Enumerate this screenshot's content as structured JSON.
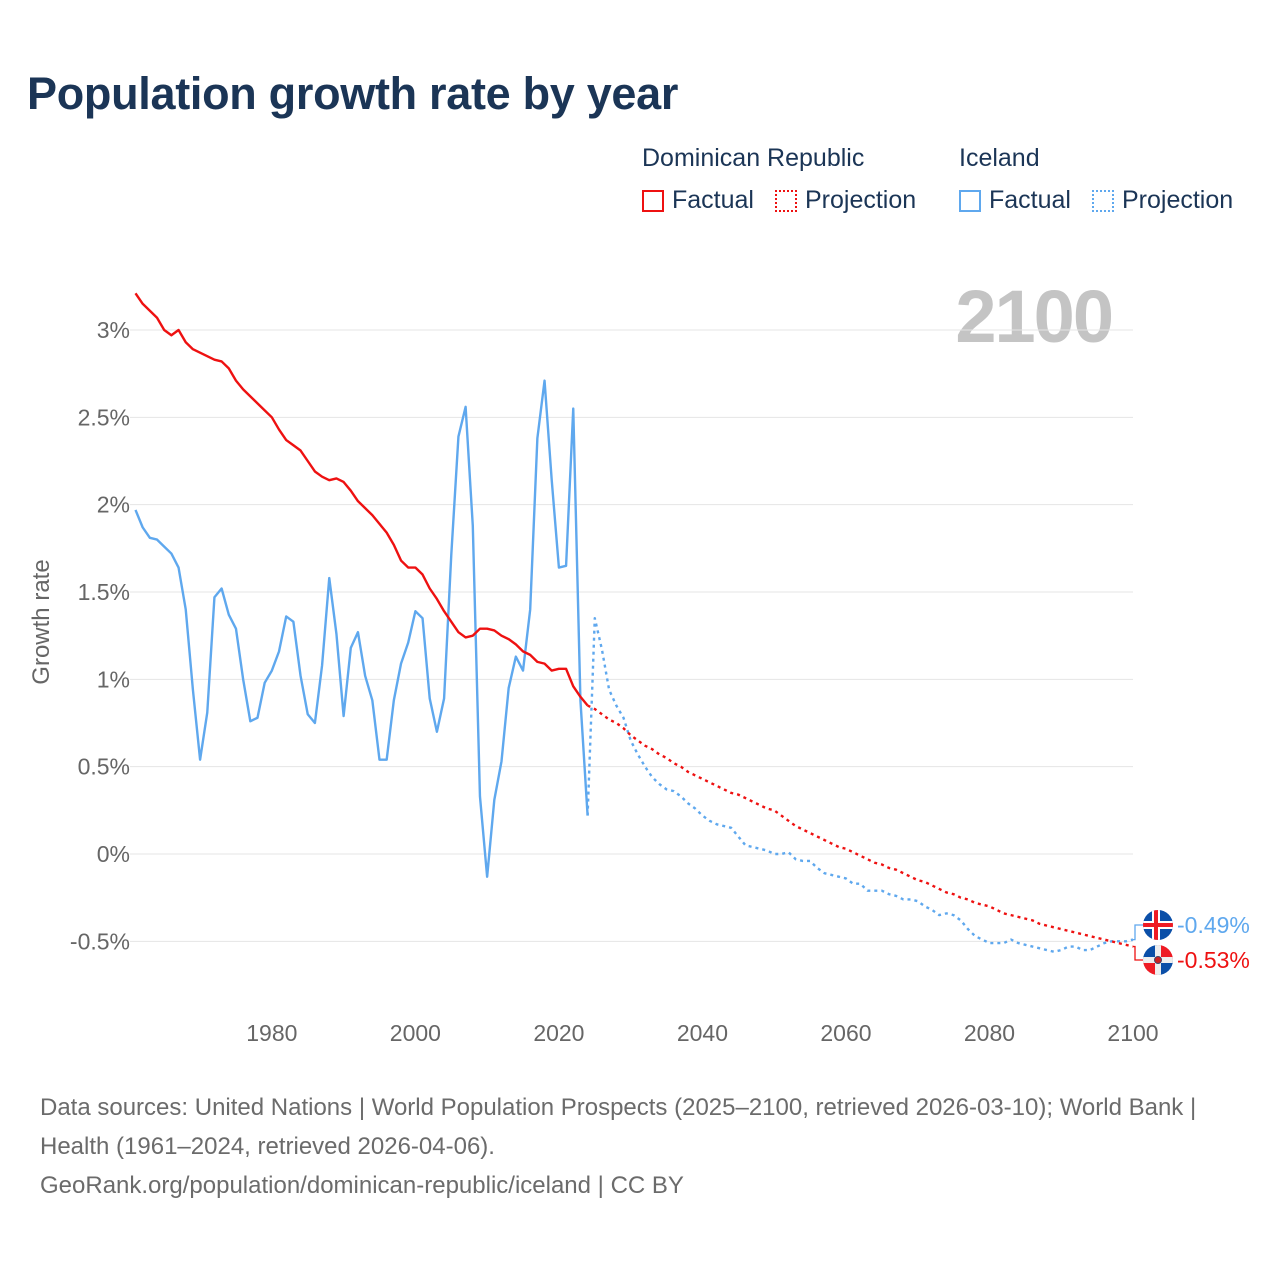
{
  "title": "Population growth rate by year",
  "legend": {
    "groups": [
      {
        "name": "Dominican Republic",
        "factual": "Factual",
        "projection": "Projection",
        "color": "#ee1111"
      },
      {
        "name": "Iceland",
        "factual": "Factual",
        "projection": "Projection",
        "color": "#5fa8ee"
      }
    ]
  },
  "year_display": "2100",
  "end_labels": {
    "iceland": "-0.49%",
    "dominican_republic": "-0.53%"
  },
  "source": {
    "line1": "Data sources: United Nations | World Population Prospects (2025–2100, retrieved 2026-03-10); World Bank | Health (1961–2024, retrieved 2026-04-06).",
    "line2": "GeoRank.org/population/dominican-republic/iceland | CC BY"
  },
  "chart_data": {
    "type": "line",
    "title": "Population growth rate by year",
    "xlabel": "",
    "ylabel": "Growth rate",
    "xlim": [
      1961,
      2100
    ],
    "ylim": [
      -0.75,
      3.3
    ],
    "x_ticks": [
      1980,
      2000,
      2020,
      2040,
      2060,
      2080,
      2100
    ],
    "y_ticks": [
      {
        "value": 3,
        "label": "3%"
      },
      {
        "value": 2.5,
        "label": "2.5%"
      },
      {
        "value": 2,
        "label": "2%"
      },
      {
        "value": 1.5,
        "label": "1.5%"
      },
      {
        "value": 1,
        "label": "1%"
      },
      {
        "value": 0.5,
        "label": "0.5%"
      },
      {
        "value": 0,
        "label": "0%"
      },
      {
        "value": -0.5,
        "label": "-0.5%"
      }
    ],
    "grid": true,
    "legend_position": "top-right",
    "series": [
      {
        "name": "Dominican Republic",
        "color": "#ee1111",
        "factual_start": 1961,
        "factual": [
          3.21,
          3.15,
          3.11,
          3.07,
          3.0,
          2.97,
          3.0,
          2.93,
          2.89,
          2.87,
          2.85,
          2.83,
          2.82,
          2.78,
          2.71,
          2.66,
          2.62,
          2.58,
          2.54,
          2.5,
          2.43,
          2.37,
          2.34,
          2.31,
          2.25,
          2.19,
          2.16,
          2.14,
          2.15,
          2.13,
          2.08,
          2.02,
          1.98,
          1.94,
          1.89,
          1.84,
          1.77,
          1.68,
          1.64,
          1.64,
          1.6,
          1.52,
          1.46,
          1.39,
          1.33,
          1.27,
          1.24,
          1.25,
          1.29,
          1.29,
          1.28,
          1.25,
          1.23,
          1.2,
          1.16,
          1.14,
          1.1,
          1.09,
          1.05,
          1.06,
          1.06,
          0.96,
          0.9,
          0.85
        ],
        "projection_start": 2025,
        "projection": [
          0.83,
          0.8,
          0.77,
          0.75,
          0.72,
          0.68,
          0.65,
          0.62,
          0.6,
          0.57,
          0.55,
          0.52,
          0.5,
          0.47,
          0.45,
          0.43,
          0.41,
          0.39,
          0.37,
          0.35,
          0.34,
          0.32,
          0.3,
          0.28,
          0.26,
          0.25,
          0.22,
          0.19,
          0.16,
          0.14,
          0.12,
          0.1,
          0.08,
          0.06,
          0.04,
          0.03,
          0.01,
          -0.01,
          -0.03,
          -0.05,
          -0.06,
          -0.08,
          -0.09,
          -0.11,
          -0.13,
          -0.15,
          -0.16,
          -0.18,
          -0.2,
          -0.22,
          -0.23,
          -0.25,
          -0.26,
          -0.28,
          -0.29,
          -0.3,
          -0.32,
          -0.34,
          -0.35,
          -0.36,
          -0.37,
          -0.38,
          -0.4,
          -0.41,
          -0.42,
          -0.43,
          -0.44,
          -0.45,
          -0.46,
          -0.47,
          -0.48,
          -0.49,
          -0.5,
          -0.51,
          -0.52,
          -0.53
        ]
      },
      {
        "name": "Iceland",
        "color": "#5fa8ee",
        "factual_start": 1961,
        "factual": [
          1.97,
          1.87,
          1.81,
          1.8,
          1.76,
          1.72,
          1.64,
          1.4,
          0.94,
          0.54,
          0.81,
          1.47,
          1.52,
          1.37,
          1.29,
          1.0,
          0.76,
          0.78,
          0.98,
          1.05,
          1.16,
          1.36,
          1.33,
          1.02,
          0.8,
          0.75,
          1.08,
          1.58,
          1.26,
          0.79,
          1.18,
          1.27,
          1.02,
          0.88,
          0.54,
          0.54,
          0.88,
          1.09,
          1.21,
          1.39,
          1.35,
          0.89,
          0.7,
          0.89,
          1.71,
          2.39,
          2.56,
          1.88,
          0.33,
          -0.13,
          0.31,
          0.53,
          0.95,
          1.13,
          1.05,
          1.4,
          2.38,
          2.71,
          2.14,
          1.64,
          1.65,
          2.55,
          0.88,
          0.22
        ],
        "projection_start": 2025,
        "projection": [
          1.35,
          1.17,
          0.94,
          0.85,
          0.78,
          0.65,
          0.57,
          0.5,
          0.44,
          0.4,
          0.37,
          0.36,
          0.33,
          0.29,
          0.26,
          0.22,
          0.19,
          0.17,
          0.16,
          0.15,
          0.1,
          0.05,
          0.04,
          0.03,
          0.02,
          0.0,
          0.0,
          0.01,
          -0.03,
          -0.04,
          -0.04,
          -0.08,
          -0.11,
          -0.12,
          -0.13,
          -0.14,
          -0.17,
          -0.17,
          -0.21,
          -0.21,
          -0.21,
          -0.23,
          -0.24,
          -0.26,
          -0.26,
          -0.27,
          -0.3,
          -0.32,
          -0.35,
          -0.34,
          -0.35,
          -0.38,
          -0.43,
          -0.47,
          -0.49,
          -0.51,
          -0.51,
          -0.51,
          -0.49,
          -0.51,
          -0.52,
          -0.53,
          -0.54,
          -0.55,
          -0.56,
          -0.55,
          -0.53,
          -0.53,
          -0.55,
          -0.55,
          -0.53,
          -0.51,
          -0.5,
          -0.5,
          -0.5,
          -0.49
        ]
      }
    ]
  }
}
